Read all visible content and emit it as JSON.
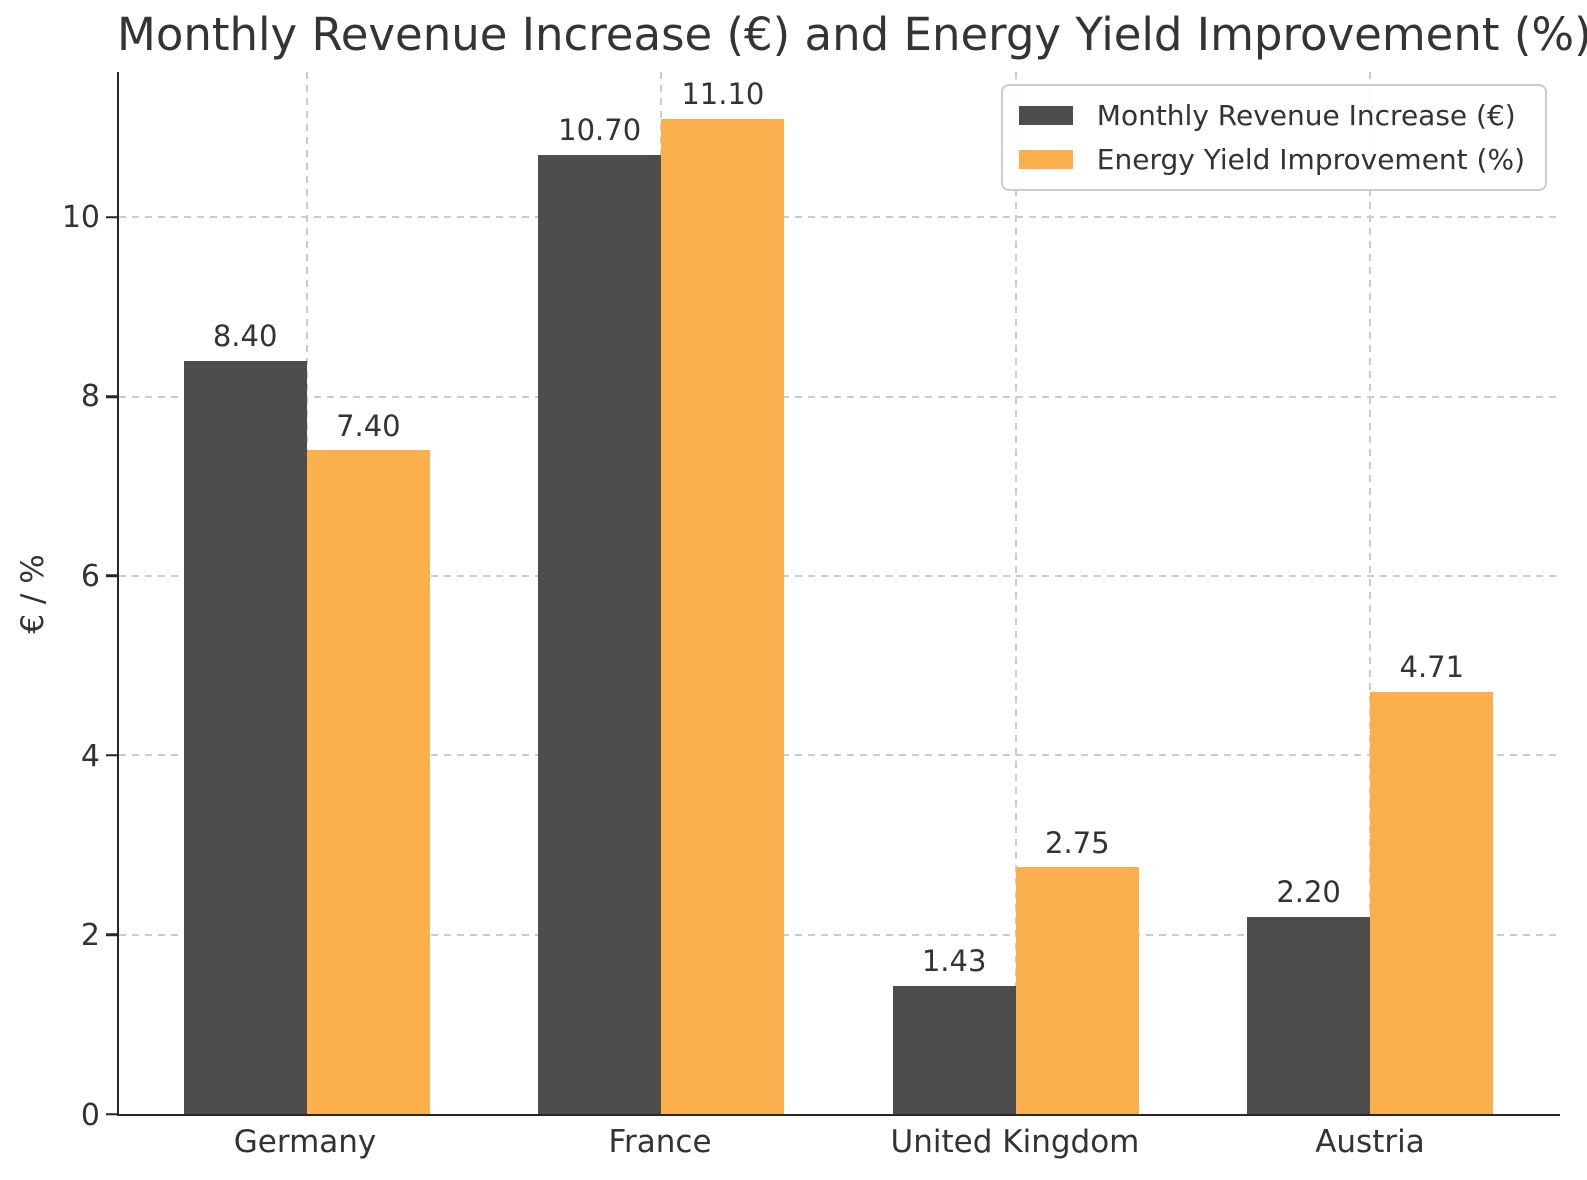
{
  "chart_data": {
    "type": "bar",
    "title": "Monthly Revenue Increase (€) and Energy Yield Improvement (%)",
    "xlabel": "",
    "ylabel": "€ / %",
    "categories": [
      "Germany",
      "France",
      "United Kingdom",
      "Austria"
    ],
    "series": [
      {
        "name": "Monthly Revenue Increase (€)",
        "values": [
          8.4,
          10.7,
          1.43,
          2.2
        ],
        "labels": [
          "8.40",
          "10.70",
          "1.43",
          "2.20"
        ],
        "color": "#4d4d4d"
      },
      {
        "name": "Energy Yield Improvement (%)",
        "values": [
          7.4,
          11.1,
          2.75,
          4.71
        ],
        "labels": [
          "7.40",
          "11.10",
          "2.75",
          "4.71"
        ],
        "color": "#fbb04d"
      }
    ],
    "yticks": [
      0,
      2,
      4,
      6,
      8,
      10
    ],
    "ytick_labels": [
      "0",
      "2",
      "4",
      "6",
      "8",
      "10"
    ],
    "ylim": [
      0,
      11.62
    ],
    "grid": {
      "horizontal": true,
      "vertical": true,
      "style": "dashed",
      "color": "#cccccc"
    },
    "legend": {
      "position": "top-right",
      "border_color": "#cccccc"
    },
    "colors": {
      "spine": "#262626",
      "text": "#333333",
      "background": "#ffffff"
    },
    "layout": {
      "category_centers_pct": [
        13.03,
        37.63,
        62.23,
        86.83
      ],
      "bar_width_pct": 8.55
    }
  }
}
